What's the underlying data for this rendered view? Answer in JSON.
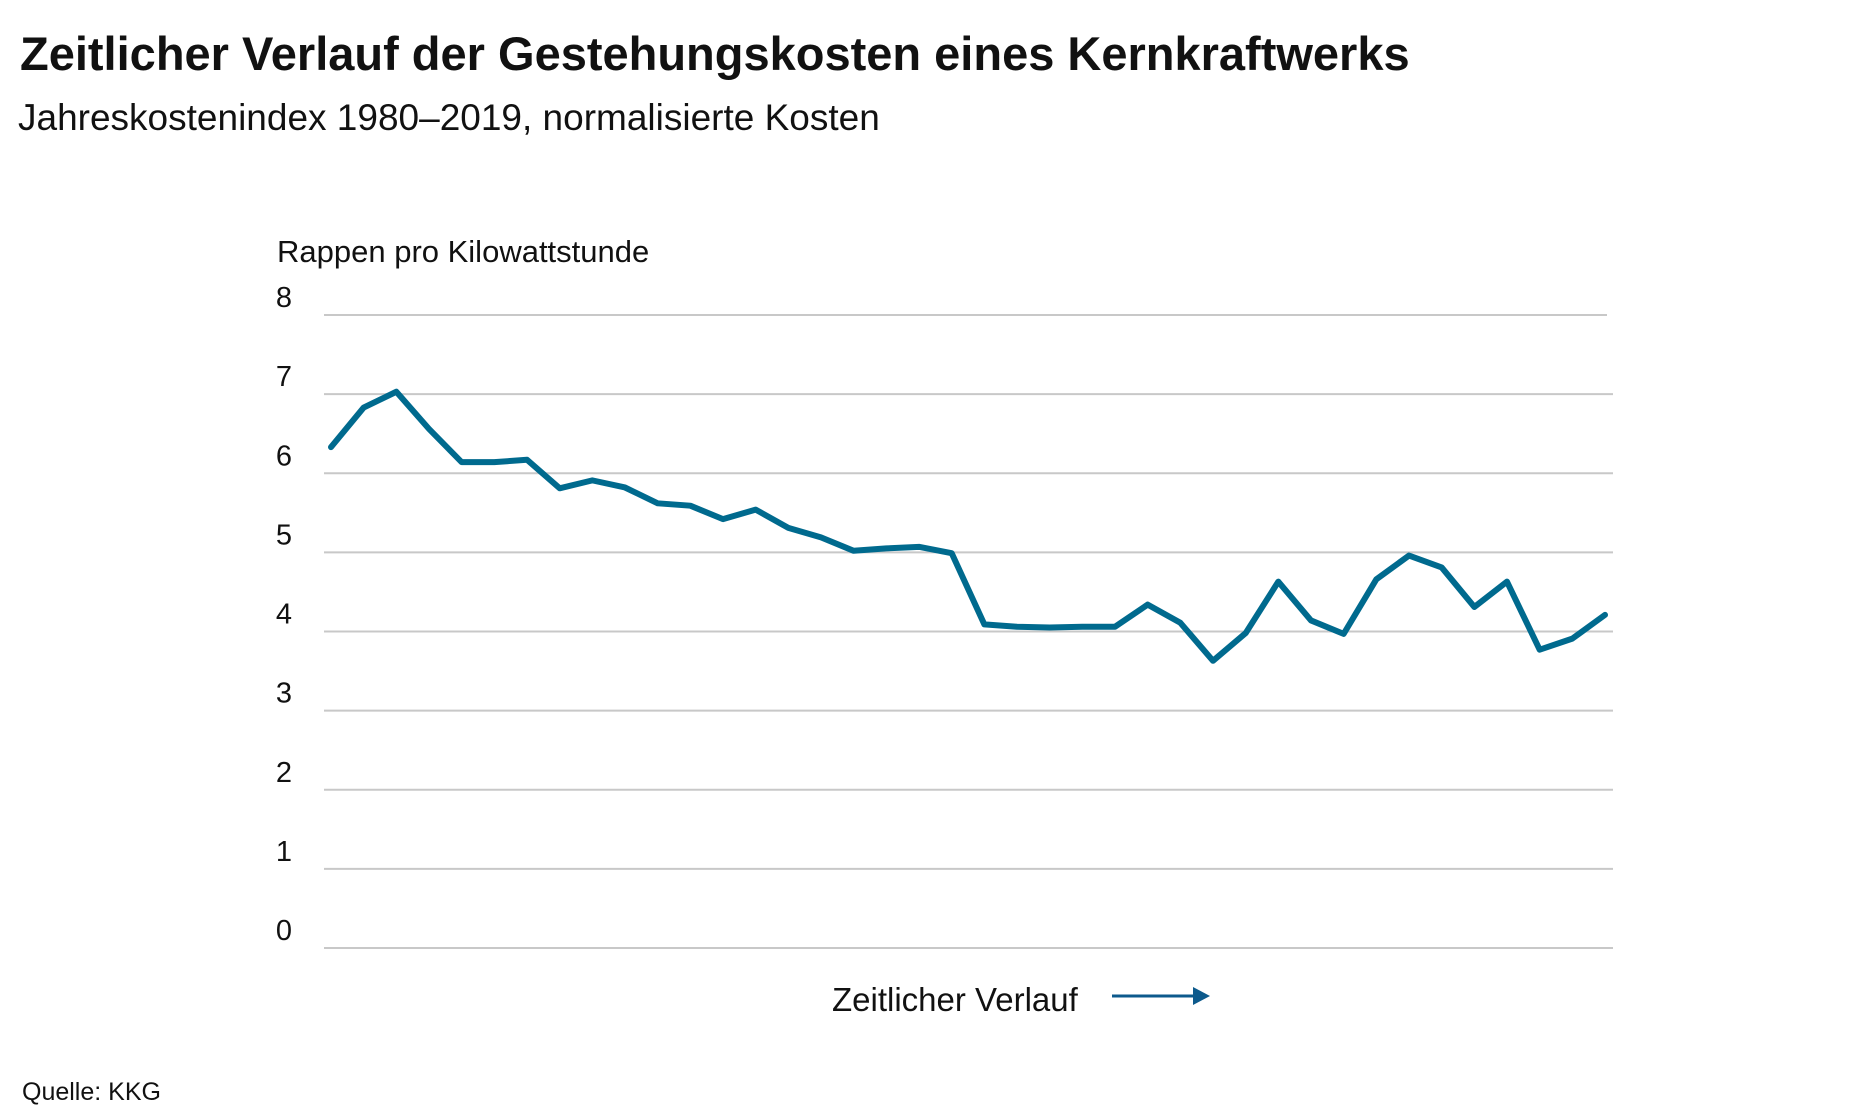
{
  "header": {
    "title": "Zeitlicher Verlauf der Gestehungskosten eines Kernkraftwerks",
    "subtitle": "Jahreskostenindex 1980–2019, normalisierte Kosten"
  },
  "source": "Quelle: KKG",
  "chart_data": {
    "type": "line",
    "title": "Zeitlicher Verlauf der Gestehungskosten eines Kernkraftwerks",
    "subtitle": "Jahreskostenindex 1980–2019, normalisierte Kosten",
    "ylabel": "Rappen pro Kilowattstunde",
    "xlabel": "Zeitlicher Verlauf",
    "ylim": [
      0,
      8
    ],
    "yticks": [
      "0",
      "1",
      "2",
      "3",
      "4",
      "5",
      "6",
      "7",
      "8"
    ],
    "grid": true,
    "line_color": "#006a8e",
    "arrow_color": "#0d5a8c",
    "series": [
      {
        "values": [
          6.33,
          6.83,
          7.03,
          6.56,
          6.14,
          6.14,
          6.17,
          5.81,
          5.91,
          5.82,
          5.62,
          5.59,
          5.42,
          5.54,
          5.31,
          5.19,
          5.02,
          5.05,
          5.07,
          4.99,
          4.09,
          4.06,
          4.05,
          4.06,
          4.06,
          4.34,
          4.11,
          3.63,
          3.98,
          4.63,
          4.14,
          3.97,
          4.66,
          4.96,
          4.81,
          4.31,
          4.63,
          3.77,
          3.91,
          4.21
        ]
      }
    ]
  }
}
